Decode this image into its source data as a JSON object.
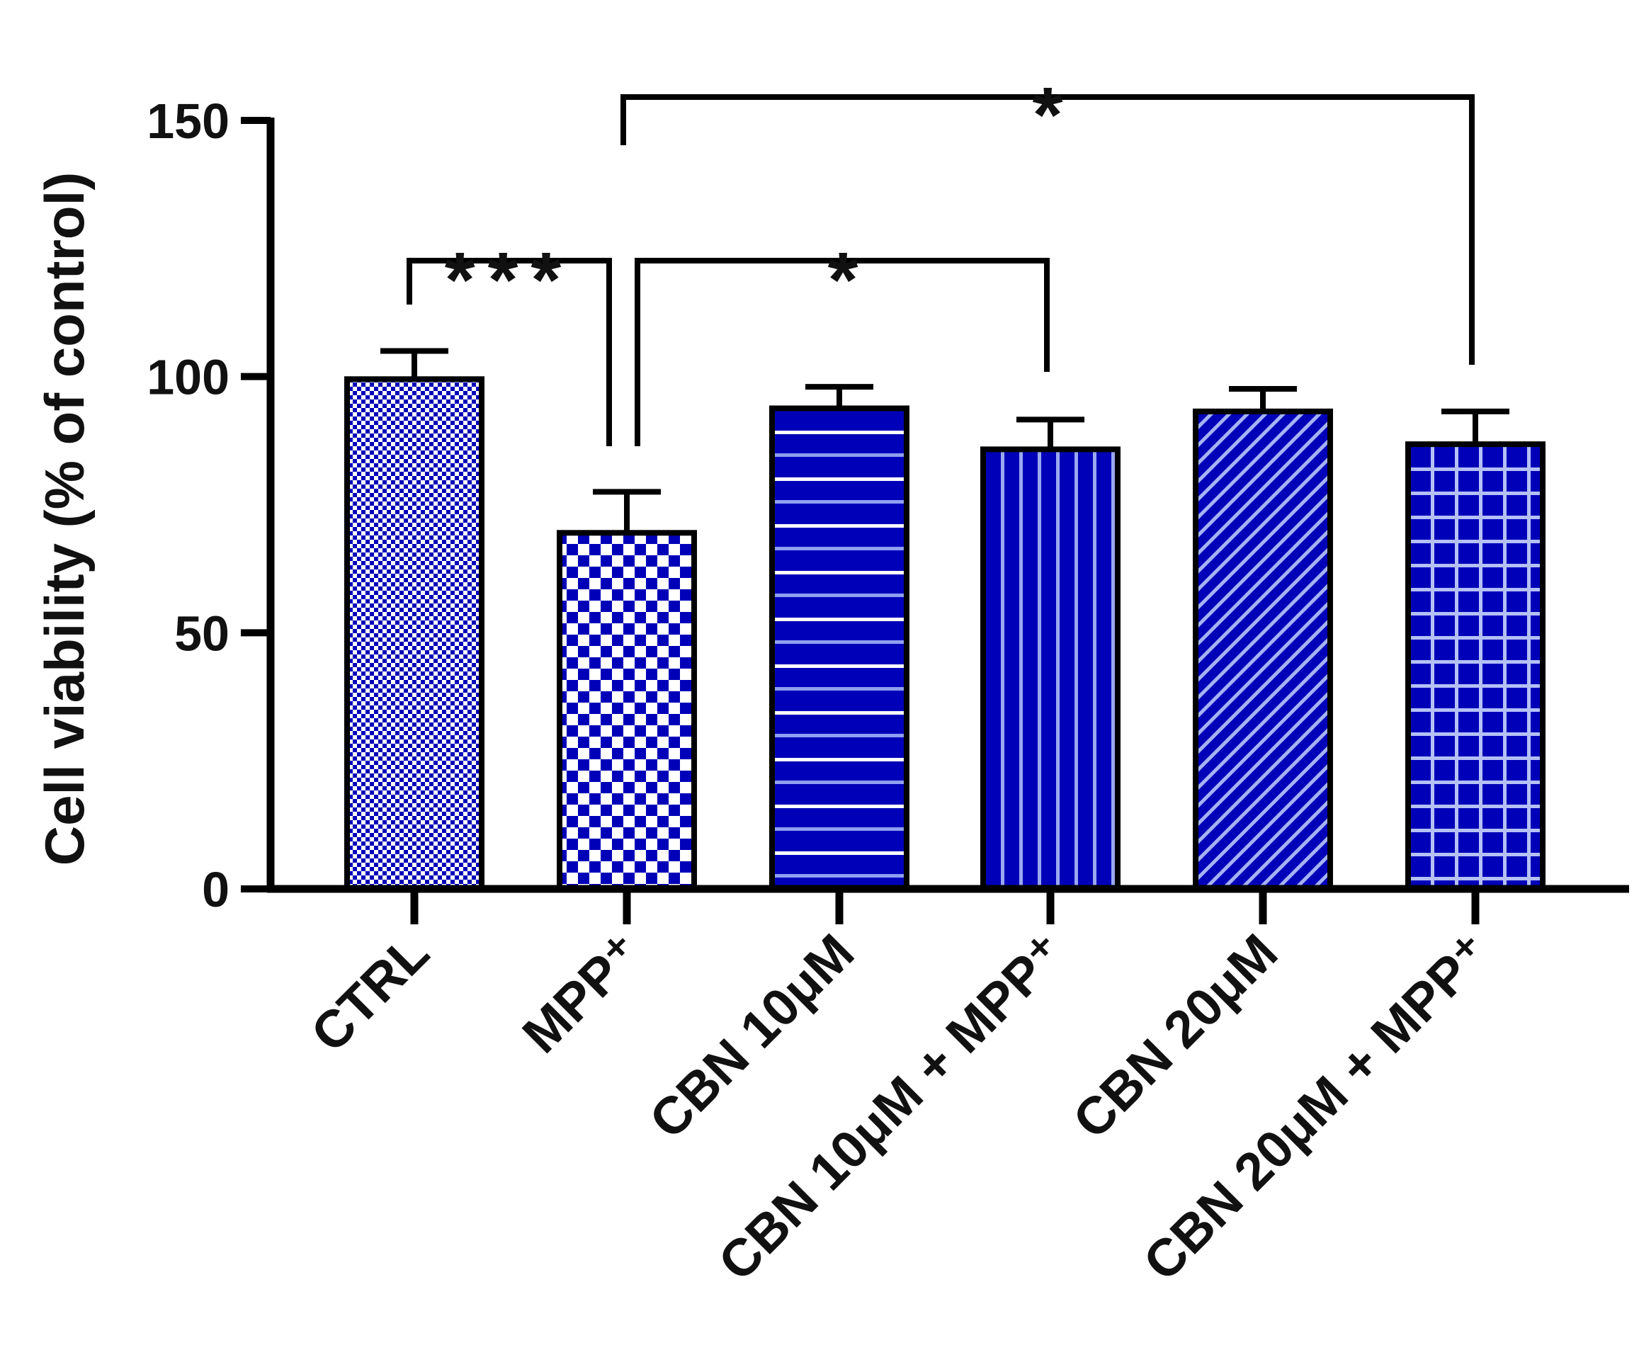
{
  "chart_data": {
    "type": "bar",
    "title": "",
    "xlabel": "",
    "ylabel": "Cell viability (% of control)",
    "ylim": [
      0,
      150
    ],
    "yticks": [
      0,
      50,
      100,
      150
    ],
    "categories": [
      "CTRL",
      "MPP⁺",
      "CBN 10μM",
      "CBN 10μM + MPP⁺",
      "CBN 20μM",
      "CBN 20μM + MPP⁺"
    ],
    "values": [
      99.5,
      69.5,
      93.8,
      85.8,
      93.2,
      86.8
    ],
    "error_plus": [
      5.5,
      8.0,
      4.2,
      5.8,
      4.4,
      6.4
    ],
    "patterns": [
      "fine-check",
      "check",
      "horizontal-stripes",
      "vertical-stripes",
      "diagonal-stripes",
      "grid"
    ],
    "significance": [
      {
        "from": 0,
        "to": 1,
        "label": "***"
      },
      {
        "from": 1,
        "to": 3,
        "label": "*"
      },
      {
        "from": 1,
        "to": 5,
        "label": "*"
      }
    ]
  },
  "colors": {
    "bar_fill": "#0000b8",
    "pattern_light": "#ffffff",
    "pattern_mid": "#9aa8f0",
    "axis": "#000000"
  }
}
